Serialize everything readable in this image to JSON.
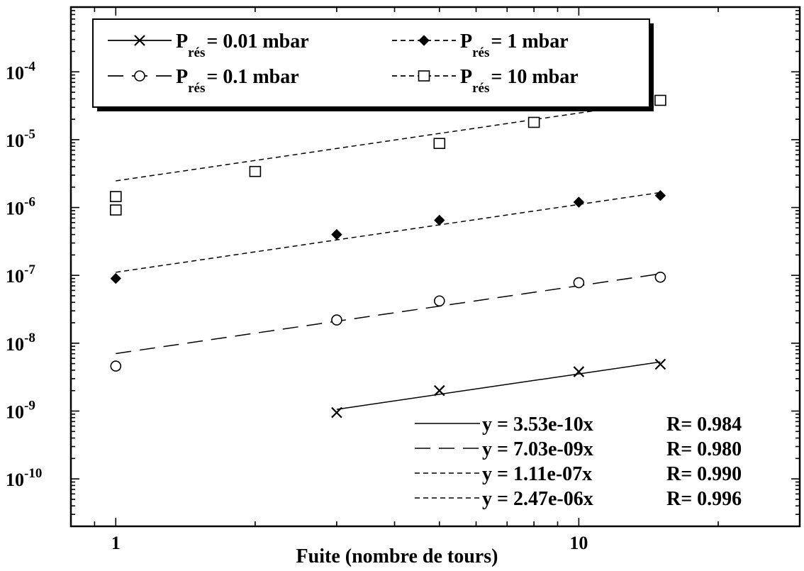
{
  "chart_data": {
    "type": "scatter",
    "xscale": "log",
    "yscale": "log",
    "xlim": [
      0.8,
      30
    ],
    "ylim": [
      2e-11,
      0.0009
    ],
    "xlabel": "Fuite (nombre de tours)",
    "ylabel": "",
    "grid": false,
    "legend_position": "top-left",
    "x_ticks": [
      {
        "value": 1,
        "label": "1"
      },
      {
        "value": 10,
        "label": "10"
      }
    ],
    "y_ticks": [
      {
        "value": 1e-10,
        "base": "10",
        "exp": "-10"
      },
      {
        "value": 1e-09,
        "base": "10",
        "exp": "-9"
      },
      {
        "value": 1e-08,
        "base": "10",
        "exp": "-8"
      },
      {
        "value": 1e-07,
        "base": "10",
        "exp": "-7"
      },
      {
        "value": 1e-06,
        "base": "10",
        "exp": "-6"
      },
      {
        "value": 1e-05,
        "base": "10",
        "exp": "-5"
      },
      {
        "value": 0.0001,
        "base": "10",
        "exp": "-4"
      }
    ],
    "series": [
      {
        "name": "0.01 mbar",
        "legend_prefix": "P",
        "legend_sub": "rés",
        "legend_value": "= 0.01 mbar",
        "marker": "cross",
        "dash": "solid",
        "x": [
          3,
          5,
          10,
          15
        ],
        "y": [
          9.5e-10,
          2e-09,
          3.8e-09,
          4.9e-09
        ],
        "fit": {
          "slope": 3.53e-10,
          "x_range": [
            3,
            15
          ],
          "label": "y = 3.53e-10x",
          "r": "R= 0.984"
        }
      },
      {
        "name": "0.1 mbar",
        "legend_prefix": "P",
        "legend_sub": "rés",
        "legend_value": "= 0.1 mbar",
        "marker": "circle",
        "dash": "long",
        "x": [
          1,
          3,
          5,
          10,
          15
        ],
        "y": [
          4.6e-09,
          2.2e-08,
          4.2e-08,
          7.8e-08,
          9.4e-08
        ],
        "fit": {
          "slope": 7.03e-09,
          "x_range": [
            1,
            15
          ],
          "label": "y = 7.03e-09x",
          "r": "R= 0.980"
        }
      },
      {
        "name": "1 mbar",
        "legend_prefix": "P",
        "legend_sub": "rés",
        "legend_value": "= 1 mbar",
        "marker": "diamond",
        "dash": "short",
        "x": [
          1,
          3,
          5,
          10,
          15
        ],
        "y": [
          9e-08,
          4e-07,
          6.5e-07,
          1.2e-06,
          1.5e-06
        ],
        "fit": {
          "slope": 1.11e-07,
          "x_range": [
            1,
            15
          ],
          "label": "y = 1.11e-07x",
          "r": "R= 0.990"
        }
      },
      {
        "name": "10 mbar",
        "legend_prefix": "P",
        "legend_sub": "rés",
        "legend_value": "= 10 mbar",
        "marker": "square",
        "dash": "short",
        "x": [
          1,
          1,
          2,
          5,
          8,
          15
        ],
        "y": [
          9.2e-07,
          1.45e-06,
          3.4e-06,
          8.8e-06,
          1.8e-05,
          3.8e-05
        ],
        "fit": {
          "slope": 2.47e-06,
          "x_range": [
            1,
            15
          ],
          "label": "y = 2.47e-06x",
          "r": "R= 0.996"
        }
      }
    ]
  }
}
